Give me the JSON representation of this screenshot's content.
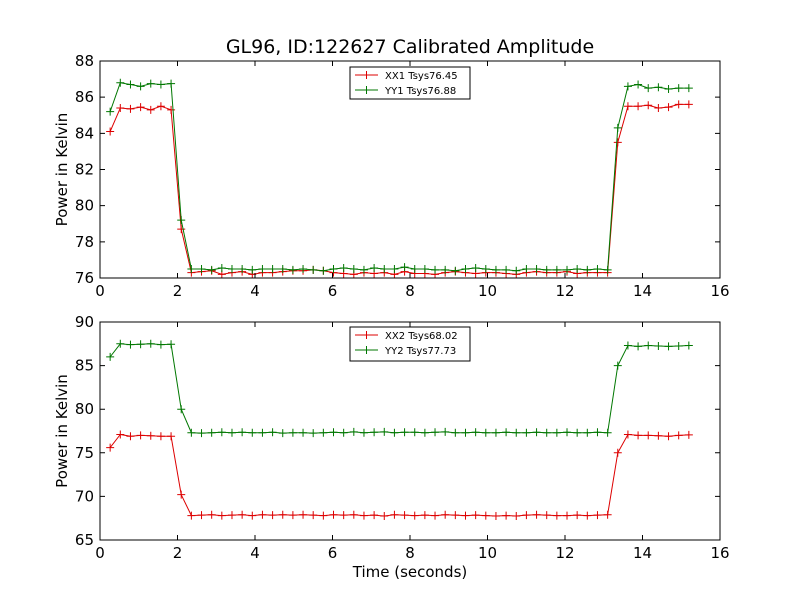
{
  "figure": {
    "title": "GL96, ID:122627 Calibrated Amplitude"
  },
  "colors": {
    "xx": "#dd0000",
    "yy": "#007700",
    "axes": "#000000",
    "background": "#ffffff"
  },
  "chart_data": [
    {
      "type": "line",
      "title": "GL96, ID:122627 Calibrated Amplitude",
      "xlabel": "",
      "ylabel": "Power in Kelvin",
      "xlim": [
        0,
        16
      ],
      "ylim": [
        76,
        88
      ],
      "xticks": [
        0,
        2,
        4,
        6,
        8,
        10,
        12,
        14,
        16
      ],
      "yticks": [
        76,
        78,
        80,
        82,
        84,
        86,
        88
      ],
      "grid": false,
      "legend": "top-center",
      "x": [
        0.262,
        0.524,
        0.786,
        1.048,
        1.31,
        1.572,
        1.834,
        2.096,
        2.358,
        2.62,
        2.882,
        3.144,
        3.406,
        3.668,
        3.93,
        4.192,
        4.454,
        4.716,
        4.978,
        5.24,
        5.502,
        5.764,
        6.026,
        6.288,
        6.55,
        6.812,
        7.074,
        7.336,
        7.598,
        7.86,
        8.122,
        8.384,
        8.646,
        8.908,
        9.17,
        9.432,
        9.694,
        9.956,
        10.218,
        10.48,
        10.742,
        11.004,
        11.266,
        11.528,
        11.79,
        12.052,
        12.314,
        12.576,
        12.838,
        13.1,
        13.362,
        13.624,
        13.886,
        14.148,
        14.41,
        14.672,
        14.934,
        15.196
      ],
      "series": [
        {
          "name": "XX1 Tsys76.45",
          "color": "#dd0000",
          "values": [
            84.1,
            85.4,
            85.35,
            85.45,
            85.3,
            85.5,
            85.3,
            78.7,
            76.3,
            76.35,
            76.4,
            76.2,
            76.3,
            76.35,
            76.2,
            76.3,
            76.3,
            76.35,
            76.4,
            76.4,
            76.45,
            76.4,
            76.3,
            76.25,
            76.2,
            76.3,
            76.25,
            76.3,
            76.2,
            76.35,
            76.25,
            76.25,
            76.2,
            76.3,
            76.35,
            76.3,
            76.25,
            76.3,
            76.3,
            76.25,
            76.2,
            76.3,
            76.35,
            76.3,
            76.3,
            76.35,
            76.25,
            76.3,
            76.3,
            76.3,
            83.5,
            85.5,
            85.5,
            85.55,
            85.4,
            85.45,
            85.6,
            85.6
          ]
        },
        {
          "name": "YY1 Tsys76.88",
          "color": "#007700",
          "values": [
            85.2,
            86.8,
            86.7,
            86.6,
            86.75,
            86.7,
            86.75,
            79.2,
            76.5,
            76.5,
            76.45,
            76.55,
            76.5,
            76.5,
            76.45,
            76.5,
            76.5,
            76.5,
            76.45,
            76.5,
            76.45,
            76.4,
            76.5,
            76.55,
            76.5,
            76.45,
            76.55,
            76.5,
            76.5,
            76.6,
            76.5,
            76.5,
            76.45,
            76.45,
            76.4,
            76.5,
            76.55,
            76.5,
            76.45,
            76.45,
            76.4,
            76.5,
            76.5,
            76.45,
            76.45,
            76.45,
            76.5,
            76.45,
            76.5,
            76.45,
            84.3,
            86.6,
            86.7,
            86.5,
            86.55,
            86.45,
            86.5,
            86.5
          ]
        }
      ]
    },
    {
      "type": "line",
      "title": "",
      "xlabel": "Time (seconds)",
      "ylabel": "Power in Kelvin",
      "xlim": [
        0,
        16
      ],
      "ylim": [
        65,
        90
      ],
      "xticks": [
        0,
        2,
        4,
        6,
        8,
        10,
        12,
        14,
        16
      ],
      "yticks": [
        65,
        70,
        75,
        80,
        85,
        90
      ],
      "grid": false,
      "legend": "top-center",
      "x": [
        0.262,
        0.524,
        0.786,
        1.048,
        1.31,
        1.572,
        1.834,
        2.096,
        2.358,
        2.62,
        2.882,
        3.144,
        3.406,
        3.668,
        3.93,
        4.192,
        4.454,
        4.716,
        4.978,
        5.24,
        5.502,
        5.764,
        6.026,
        6.288,
        6.55,
        6.812,
        7.074,
        7.336,
        7.598,
        7.86,
        8.122,
        8.384,
        8.646,
        8.908,
        9.17,
        9.432,
        9.694,
        9.956,
        10.218,
        10.48,
        10.742,
        11.004,
        11.266,
        11.528,
        11.79,
        12.052,
        12.314,
        12.576,
        12.838,
        13.1,
        13.362,
        13.624,
        13.886,
        14.148,
        14.41,
        14.672,
        14.934,
        15.196
      ],
      "series": [
        {
          "name": "XX2 Tsys68.02",
          "color": "#dd0000",
          "values": [
            75.6,
            77.1,
            76.9,
            77.0,
            76.95,
            76.9,
            76.9,
            70.2,
            67.8,
            67.85,
            67.9,
            67.8,
            67.85,
            67.9,
            67.8,
            67.9,
            67.85,
            67.9,
            67.85,
            67.9,
            67.85,
            67.8,
            67.9,
            67.85,
            67.9,
            67.8,
            67.85,
            67.75,
            67.9,
            67.85,
            67.8,
            67.85,
            67.8,
            67.9,
            67.85,
            67.8,
            67.85,
            67.8,
            67.75,
            67.8,
            67.75,
            67.85,
            67.9,
            67.85,
            67.8,
            67.8,
            67.85,
            67.8,
            67.85,
            67.9,
            75.0,
            77.1,
            77.0,
            77.0,
            76.95,
            76.9,
            77.0,
            77.05
          ]
        },
        {
          "name": "YY2 Tsys77.73",
          "color": "#007700",
          "values": [
            86.0,
            87.5,
            87.4,
            87.45,
            87.5,
            87.4,
            87.45,
            80.0,
            77.3,
            77.25,
            77.3,
            77.35,
            77.3,
            77.35,
            77.3,
            77.3,
            77.35,
            77.25,
            77.3,
            77.3,
            77.25,
            77.3,
            77.35,
            77.3,
            77.4,
            77.3,
            77.35,
            77.4,
            77.3,
            77.35,
            77.35,
            77.3,
            77.35,
            77.4,
            77.3,
            77.3,
            77.35,
            77.3,
            77.3,
            77.35,
            77.3,
            77.3,
            77.35,
            77.3,
            77.3,
            77.35,
            77.3,
            77.3,
            77.35,
            77.3,
            85.0,
            87.3,
            87.2,
            87.3,
            87.25,
            87.2,
            87.25,
            87.3
          ]
        }
      ]
    }
  ]
}
